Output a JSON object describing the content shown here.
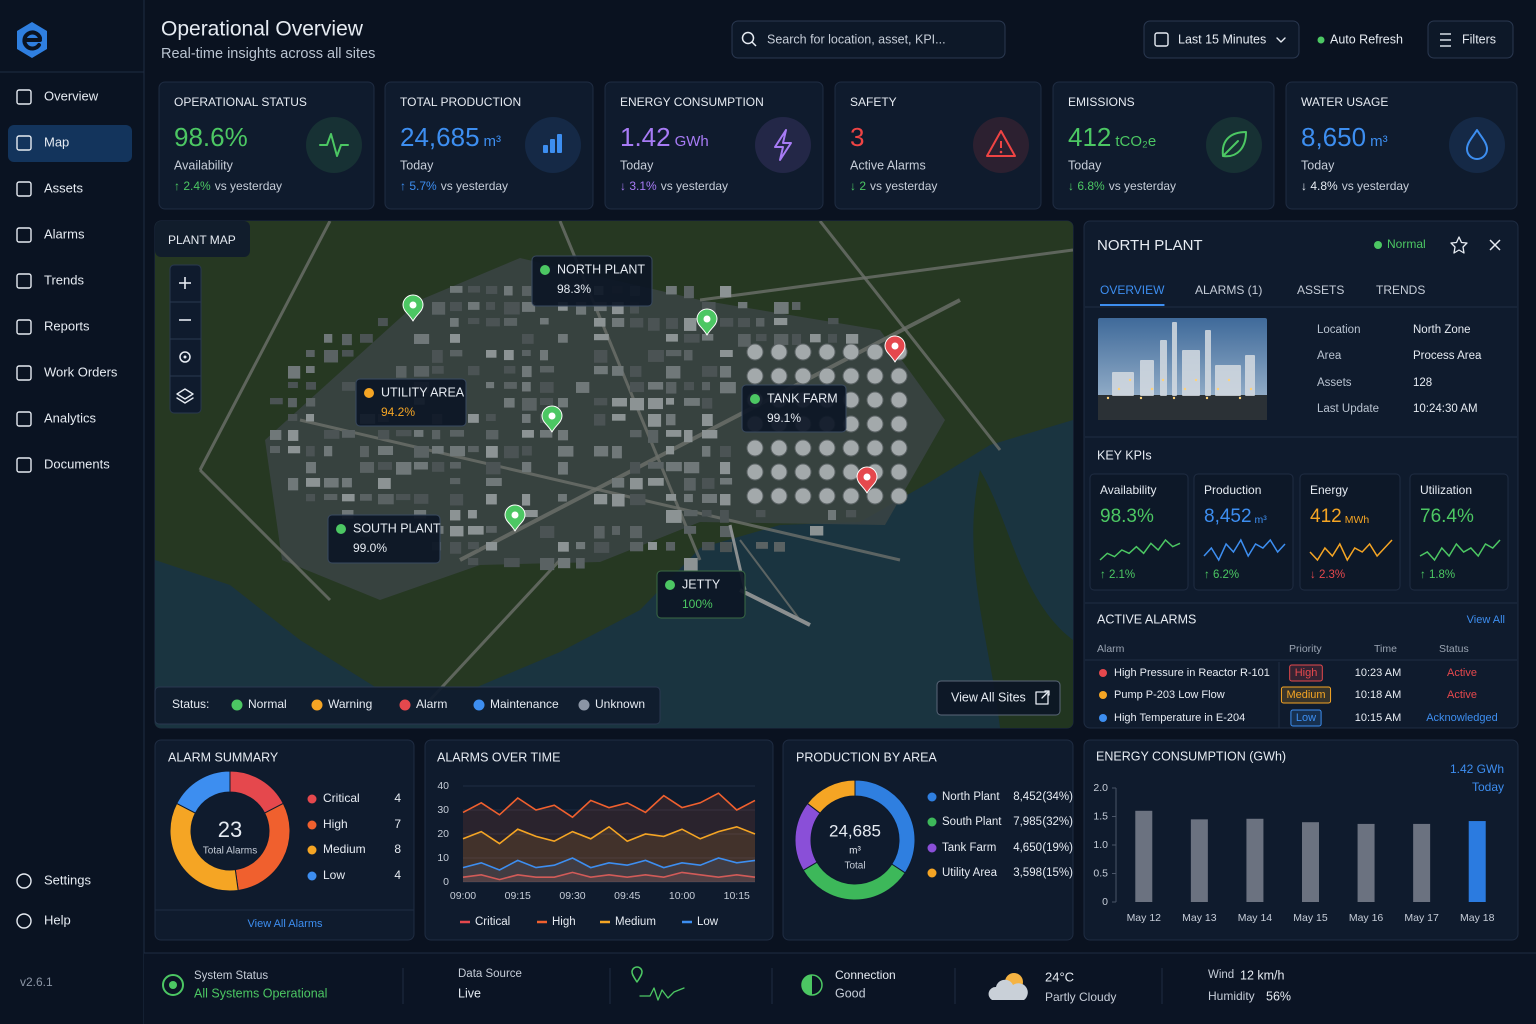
{
  "sidebar": {
    "nav": [
      "Overview",
      "Map",
      "Assets",
      "Alarms",
      "Trends",
      "Reports",
      "Work Orders",
      "Analytics",
      "Documents"
    ],
    "active": 1,
    "bottom": [
      "Settings",
      "Help"
    ],
    "version": "v2.6.1"
  },
  "header": {
    "title": "Operational Overview",
    "subtitle": "Real-time insights across all sites",
    "search": "Search for location, asset, KPI...",
    "time_range": "Last 15 Minutes",
    "auto_refresh": "Auto Refresh",
    "filters": "Filters"
  },
  "kpis": [
    {
      "label": "OPERATIONAL STATUS",
      "value": "98.6%",
      "sub": "Availability",
      "delta": "↑ 2.4%",
      "delta_note": "vs yesterday",
      "color": "#4cc763",
      "delta_color": "#4cc763"
    },
    {
      "label": "TOTAL PRODUCTION",
      "value": "24,685",
      "unit": "m³",
      "sub": "Today",
      "delta": "↑ 5.7%",
      "delta_note": "vs yesterday",
      "color": "#3d8ef0",
      "delta_color": "#3d8ef0"
    },
    {
      "label": "ENERGY CONSUMPTION",
      "value": "1.42",
      "unit": "GWh",
      "sub": "Today",
      "delta": "↓ 3.1%",
      "delta_note": "vs yesterday",
      "color": "#a77bf5",
      "delta_color": "#a77bf5"
    },
    {
      "label": "SAFETY",
      "value": "3",
      "sub": "Active Alarms",
      "delta": "↓ 2",
      "delta_note": "vs yesterday",
      "color": "#ef4444",
      "delta_color": "#4cc763"
    },
    {
      "label": "EMISSIONS",
      "value": "412",
      "unit": "tCO₂e",
      "sub": "Today",
      "delta": "↓ 6.8%",
      "delta_note": "vs yesterday",
      "color": "#4cc763",
      "delta_color": "#4cc763"
    },
    {
      "label": "WATER USAGE",
      "value": "8,650",
      "unit": "m³",
      "sub": "Today",
      "delta": "↓ 4.8%",
      "delta_note": "vs yesterday",
      "color": "#3d8ef0",
      "delta_color": "#e6ebf2"
    }
  ],
  "map": {
    "title": "PLANT MAP",
    "sites": [
      {
        "name": "NORTH PLANT",
        "value": "98.3%",
        "color": "#4cc763"
      },
      {
        "name": "UTILITY AREA",
        "value": "94.2%",
        "color": "#f5a524"
      },
      {
        "name": "TANK FARM",
        "value": "99.1%",
        "color": "#4cc763"
      },
      {
        "name": "SOUTH PLANT",
        "value": "99.0%",
        "color": "#4cc763"
      },
      {
        "name": "JETTY",
        "value": "100%",
        "color": "#4cc763"
      }
    ],
    "legend_title": "Status:",
    "legend": [
      {
        "name": "Normal",
        "color": "#4cc763"
      },
      {
        "name": "Warning",
        "color": "#f5a524"
      },
      {
        "name": "Alarm",
        "color": "#e5484d"
      },
      {
        "name": "Maintenance",
        "color": "#3d8ef0"
      },
      {
        "name": "Unknown",
        "color": "#8b95a5"
      }
    ],
    "view_all": "View All Sites"
  },
  "site_panel": {
    "title": "NORTH PLANT",
    "status": "Normal",
    "tabs": [
      "OVERVIEW",
      "ALARMS (1)",
      "ASSETS",
      "TRENDS"
    ],
    "active_tab": 0,
    "details": [
      {
        "label": "Location",
        "value": "North Zone"
      },
      {
        "label": "Area",
        "value": "Process Area"
      },
      {
        "label": "Assets",
        "value": "128"
      },
      {
        "label": "Last Update",
        "value": "10:24:30 AM"
      }
    ],
    "kpi_title": "KEY KPIs",
    "kpis": [
      {
        "label": "Availability",
        "value": "98.3%",
        "color": "#4cc763",
        "trend": [
          3,
          5,
          4,
          6,
          5,
          7,
          5,
          8,
          6,
          9,
          7,
          8
        ],
        "delta": "↑ 2.1%",
        "delta_color": "#4cc763"
      },
      {
        "label": "Production",
        "value": "8,452",
        "unit": "m³",
        "color": "#3d8ef0",
        "trend": [
          4,
          6,
          3,
          7,
          5,
          8,
          4,
          7,
          6,
          8,
          5,
          7
        ],
        "delta": "↑ 6.2%",
        "delta_color": "#4cc763"
      },
      {
        "label": "Energy",
        "value": "412",
        "unit": "MWh",
        "color": "#f5a524",
        "trend": [
          5,
          3,
          6,
          4,
          7,
          3,
          6,
          5,
          7,
          4,
          6,
          8
        ],
        "delta": "↓ 2.3%",
        "delta_color": "#e5484d"
      },
      {
        "label": "Utilization",
        "value": "76.4%",
        "color": "#4cc763",
        "trend": [
          4,
          5,
          3,
          6,
          4,
          7,
          5,
          6,
          4,
          7,
          6,
          8
        ],
        "delta": "↑ 1.8%",
        "delta_color": "#4cc763"
      }
    ],
    "alarms_title": "ACTIVE ALARMS",
    "alarms_link": "View All",
    "columns": [
      "Alarm",
      "Priority",
      "Time",
      "Status"
    ],
    "alarms": [
      {
        "alarm": "High Pressure in Reactor R-101",
        "priority": "High",
        "time": "10:23 AM",
        "status": "Active",
        "color": "#e5484d",
        "status_color": "#e5484d"
      },
      {
        "alarm": "Pump P-203 Low Flow",
        "priority": "Medium",
        "time": "10:18 AM",
        "status": "Active",
        "color": "#f5a524",
        "status_color": "#e5484d"
      },
      {
        "alarm": "High Temperature in E-204",
        "priority": "Low",
        "time": "10:15 AM",
        "status": "Acknowledged",
        "color": "#3d8ef0",
        "status_color": "#3d8ef0"
      }
    ]
  },
  "alarm_summary": {
    "type": "pie",
    "title": "ALARM SUMMARY",
    "total": 23,
    "total_label": "Total Alarms",
    "categories": [
      "Critical",
      "High",
      "Medium",
      "Low"
    ],
    "values": [
      4,
      7,
      8,
      4
    ],
    "colors": [
      "#e5484d",
      "#f0602e",
      "#f5a524",
      "#3d8ef0"
    ],
    "link": "View All Alarms"
  },
  "alarms_over_time": {
    "type": "line",
    "title": "ALARMS OVER TIME",
    "categories": [
      "09:00",
      null,
      null,
      "09:15",
      null,
      null,
      "09:30",
      null,
      null,
      "09:45",
      null,
      null,
      "10:00",
      null,
      null,
      "10:15",
      null
    ],
    "ylim": [
      0,
      40
    ],
    "yticks": [
      0,
      10,
      20,
      30,
      40
    ],
    "series": [
      {
        "name": "Critical",
        "color": "#e5484d",
        "values": [
          2,
          3,
          1,
          3,
          2,
          2,
          4,
          2,
          3,
          2,
          3,
          2,
          4,
          3,
          2,
          3,
          2
        ]
      },
      {
        "name": "High",
        "color": "#f0602e",
        "values": [
          29,
          33,
          28,
          35,
          30,
          32,
          27,
          34,
          31,
          33,
          29,
          36,
          31,
          33,
          37,
          30,
          34
        ]
      },
      {
        "name": "Medium",
        "color": "#f5a524",
        "values": [
          18,
          21,
          16,
          22,
          19,
          17,
          21,
          18,
          23,
          17,
          20,
          19,
          22,
          18,
          21,
          23,
          20
        ]
      },
      {
        "name": "Low",
        "color": "#3d8ef0",
        "values": [
          6,
          8,
          5,
          9,
          6,
          7,
          10,
          6,
          8,
          7,
          9,
          6,
          8,
          7,
          10,
          8,
          9
        ]
      }
    ]
  },
  "production_by_area": {
    "type": "pie",
    "title": "PRODUCTION BY AREA",
    "total": "24,685",
    "total_unit": "m³",
    "total_label": "Total",
    "categories": [
      "North Plant",
      "South Plant",
      "Tank Farm",
      "Utility Area"
    ],
    "values": [
      8452,
      7985,
      4650,
      3598
    ],
    "value_labels": [
      "8,452",
      "7,985",
      "4,650",
      "3,598"
    ],
    "percent_labels": [
      "(34%)",
      "(32%)",
      "(19%)",
      "(15%)"
    ],
    "colors": [
      "#2f7fe0",
      "#3db85a",
      "#8a4fd8",
      "#f5a524"
    ]
  },
  "energy_consumption": {
    "type": "bar",
    "title": "ENERGY CONSUMPTION (GWh)",
    "headline": "1.42 GWh",
    "headline_note": "Today",
    "categories": [
      "May 12",
      "May 13",
      "May 14",
      "May 15",
      "May 16",
      "May 17",
      "May 18"
    ],
    "values": [
      1.6,
      1.45,
      1.46,
      1.4,
      1.37,
      1.37,
      1.42
    ],
    "ylim": [
      0,
      2
    ],
    "yticks": [
      0,
      0.5,
      {
        "value": 1,
        "label": "1.0"
      },
      1.5,
      {
        "value": 2,
        "label": "2.0"
      }
    ],
    "color": "#6b7280",
    "highlight": 6,
    "highlight_color": "#2b7be0"
  },
  "status_bar": {
    "system_label": "System Status",
    "system_value": "All Systems Operational",
    "source_label": "Data Source",
    "source_value": "Live",
    "connection_label": "Connection",
    "connection_value": "Good",
    "temperature": "24°C",
    "weather": "Partly Cloudy",
    "wind_label": "Wind",
    "wind_value": "12 km/h",
    "humidity_label": "Humidity",
    "humidity_value": "56%"
  }
}
